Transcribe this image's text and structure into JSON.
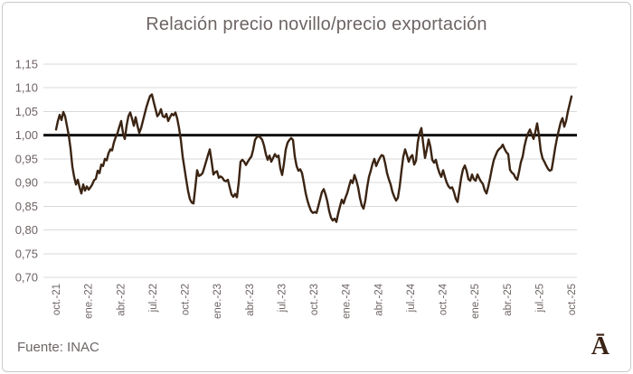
{
  "window": {
    "background": "#ffffff",
    "border_color": "#c9c9c9"
  },
  "chart_data": {
    "type": "line",
    "title": "Relación precio novillo/precio exportación",
    "xlabel": "",
    "ylabel": "",
    "ylim": [
      0.7,
      1.15
    ],
    "grid": "horizontal",
    "grid_color": "#d9d9d9",
    "label_color": "#6e6363",
    "title_color": "#6e6464",
    "x_tick_labels": [
      "oct.-21",
      "ene.-22",
      "abr.-22",
      "jul.-22",
      "oct.-22",
      "ene.-23",
      "abr.-23",
      "jul.-23",
      "oct.-23",
      "ene.-24",
      "abr.-24",
      "jul.-24",
      "oct.-24",
      "ene.-25",
      "abr.-25",
      "jul.-25",
      "oct.-25"
    ],
    "y_ticks": [
      1.15,
      1.1,
      1.05,
      1.0,
      0.95,
      0.9,
      0.85,
      0.8,
      0.75,
      0.7
    ],
    "y_tick_labels": [
      "1,15",
      "1,10",
      "1,05",
      "1,00",
      "0,95",
      "0,90",
      "0,85",
      "0,80",
      "0,75",
      "0,70"
    ],
    "reference_line": {
      "value": 1.0,
      "color": "#111111",
      "width": 3
    },
    "series": [
      {
        "name": "relación precio novillo / precio exportación",
        "color": "#3b2413",
        "width": 2.4,
        "values": [
          1.012,
          1.03,
          1.043,
          1.032,
          1.049,
          1.04,
          1.02,
          1.0,
          0.972,
          0.934,
          0.912,
          0.896,
          0.906,
          0.89,
          0.877,
          0.896,
          0.883,
          0.892,
          0.885,
          0.89,
          0.896,
          0.905,
          0.908,
          0.925,
          0.92,
          0.938,
          0.935,
          0.95,
          0.947,
          0.962,
          0.97,
          0.968,
          0.985,
          0.996,
          1.005,
          1.018,
          1.03,
          1.005,
          0.992,
          1.02,
          1.04,
          1.048,
          1.035,
          1.02,
          1.038,
          1.02,
          1.005,
          1.015,
          1.03,
          1.045,
          1.06,
          1.072,
          1.083,
          1.086,
          1.07,
          1.055,
          1.04,
          1.045,
          1.055,
          1.04,
          1.038,
          1.045,
          1.03,
          1.038,
          1.045,
          1.042,
          1.048,
          1.035,
          1.015,
          0.99,
          0.955,
          0.93,
          0.905,
          0.882,
          0.865,
          0.858,
          0.856,
          0.89,
          0.926,
          0.914,
          0.916,
          0.92,
          0.932,
          0.945,
          0.958,
          0.97,
          0.945,
          0.917,
          0.922,
          0.924,
          0.91,
          0.913,
          0.91,
          0.904,
          0.903,
          0.906,
          0.89,
          0.875,
          0.87,
          0.876,
          0.869,
          0.9,
          0.944,
          0.948,
          0.944,
          0.937,
          0.944,
          0.95,
          0.955,
          0.97,
          0.99,
          0.996,
          0.998,
          0.995,
          0.99,
          0.978,
          0.96,
          0.948,
          0.957,
          0.944,
          0.952,
          0.96,
          0.954,
          0.957,
          0.93,
          0.916,
          0.94,
          0.97,
          0.984,
          0.99,
          0.994,
          0.99,
          0.955,
          0.935,
          0.925,
          0.928,
          0.92,
          0.9,
          0.878,
          0.862,
          0.85,
          0.84,
          0.836,
          0.838,
          0.836,
          0.85,
          0.865,
          0.88,
          0.886,
          0.875,
          0.86,
          0.84,
          0.826,
          0.82,
          0.824,
          0.817,
          0.835,
          0.85,
          0.864,
          0.856,
          0.868,
          0.878,
          0.892,
          0.905,
          0.899,
          0.916,
          0.905,
          0.89,
          0.868,
          0.852,
          0.845,
          0.862,
          0.89,
          0.912,
          0.925,
          0.94,
          0.95,
          0.935,
          0.944,
          0.952,
          0.958,
          0.956,
          0.94,
          0.92,
          0.907,
          0.896,
          0.88,
          0.87,
          0.862,
          0.868,
          0.892,
          0.925,
          0.955,
          0.97,
          0.958,
          0.944,
          0.954,
          0.958,
          0.938,
          0.946,
          0.985,
          1.005,
          1.015,
          0.982,
          0.952,
          0.97,
          0.991,
          0.975,
          0.948,
          0.942,
          0.948,
          0.932,
          0.92,
          0.912,
          0.926,
          0.912,
          0.9,
          0.892,
          0.888,
          0.89,
          0.88,
          0.866,
          0.859,
          0.884,
          0.91,
          0.928,
          0.936,
          0.925,
          0.907,
          0.904,
          0.917,
          0.907,
          0.904,
          0.917,
          0.909,
          0.902,
          0.897,
          0.884,
          0.877,
          0.892,
          0.91,
          0.93,
          0.947,
          0.957,
          0.966,
          0.971,
          0.974,
          0.98,
          0.971,
          0.964,
          0.96,
          0.927,
          0.921,
          0.918,
          0.91,
          0.906,
          0.923,
          0.943,
          0.955,
          0.977,
          0.993,
          1.004,
          1.012,
          1.002,
          0.992,
          1.007,
          1.025,
          1.0,
          0.967,
          0.951,
          0.944,
          0.936,
          0.929,
          0.925,
          0.927,
          0.95,
          0.974,
          0.994,
          1.011,
          1.027,
          1.036,
          1.018,
          1.03,
          1.05,
          1.066,
          1.082
        ]
      }
    ],
    "legend": "none"
  },
  "footer": {
    "source": "Fuente: INAC",
    "logo": "Ā",
    "logo_color": "#3a2214"
  }
}
